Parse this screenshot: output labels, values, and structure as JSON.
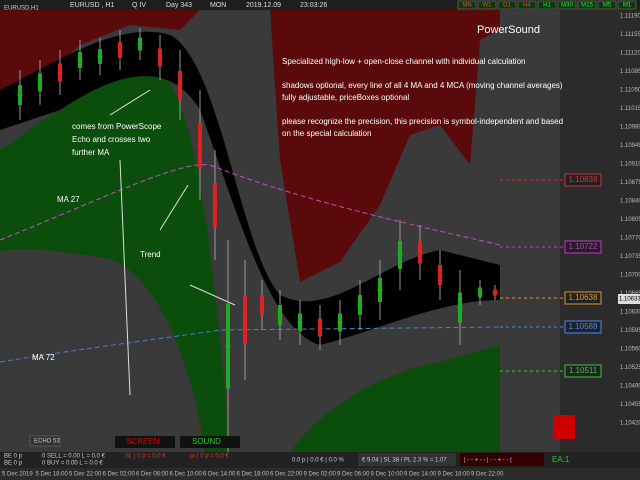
{
  "top_bar": {
    "symbol": "EURUSD , H1",
    "quarter": "Q IV",
    "day": "Day 343",
    "weekday": "MON",
    "date": "2019.12.09",
    "time": "23:03:26",
    "timeframes": [
      "MN",
      "W1",
      "D1",
      "H4",
      "H1",
      "M30",
      "M15",
      "M5",
      "M1"
    ]
  },
  "chart_label": "EURUSD,H1",
  "product": "PowerSound",
  "description": [
    "Specialized high-low + open-close channel with individual calculation",
    "shadows optional, every line of all 4 MA and 4 MCA (moving channel averages)",
    "fully adjustable, priceBoxes optional",
    "please recognize the precision, this precision is symbol-independent and based",
    "on the special calculation"
  ],
  "annotations": {
    "echo": [
      "comes from PowerScope",
      "Echo and crosses two",
      "further MA"
    ],
    "ma27": "MA 27",
    "trend": "Trend",
    "ma72": "MA 72"
  },
  "price_boxes": [
    "1.10838",
    "1.10722",
    "1.10638",
    "1.10588",
    "1.10511"
  ],
  "current_price": "1.10633",
  "price_axis": [
    "1.11190",
    "1.11155",
    "1.11120",
    "1.11085",
    "1.11050",
    "1.11015",
    "1.10980",
    "1.10945",
    "1.10910",
    "1.10875",
    "1.10840",
    "1.10805",
    "1.10770",
    "1.10735",
    "1.10700",
    "1.10665",
    "1.10630",
    "1.10595",
    "1.10560",
    "1.10525",
    "1.10490",
    "1.10455",
    "1.10420"
  ],
  "time_axis": [
    "5 Dec 2019",
    "5 Dec 18:00",
    "5 Dec 22:00",
    "6 Dec 02:00",
    "6 Dec 06:00",
    "6 Dec 10:00",
    "6 Dec 14:00",
    "6 Dec 18:00",
    "6 Dec 22:00",
    "9 Dec 02:00",
    "9 Dec 06:00",
    "9 Dec 10:00",
    "9 Dec 14:00",
    "9 Dec 18:00",
    "9 Dec 22:00"
  ],
  "bottom_panel": {
    "echo_tab": "ECHO 53",
    "screen": "SCREEN",
    "sound": "SOUND",
    "be1": "BE 0 p",
    "be2": "BE 0 p",
    "sell": "0 SELL = 0.00 L = 0.0 €",
    "buy": "0 BUY = 0.00 L = 0.0 €",
    "sl": "SL | 0 p = 0.0 €",
    "pr": "pr | 0 p = 0.0 €",
    "pl": "0.0 p | 0.0 € | 0.0 %",
    "account": "€ 9.04 | SL 38 / PL 2.3 % = 1.07",
    "scale": "| - - + - - | - - + - - |",
    "ea": "EA:1"
  }
}
